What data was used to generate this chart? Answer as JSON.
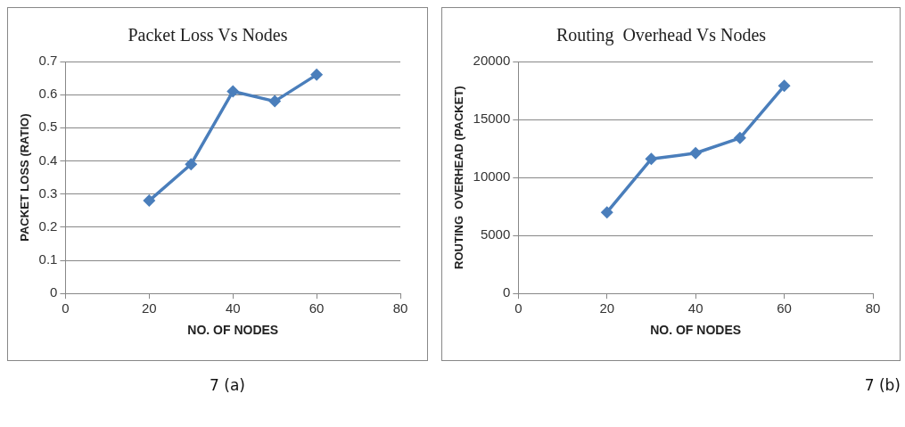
{
  "chart_data": [
    {
      "type": "line",
      "title": "Packet Loss Vs Nodes",
      "xlabel": "NO. OF NODES",
      "ylabel": "PACKET LOSS (RATIO)",
      "x": [
        20,
        30,
        40,
        50,
        60
      ],
      "series": [
        {
          "color": "#4a7ebb",
          "values": [
            0.28,
            0.39,
            0.61,
            0.58,
            0.66
          ]
        }
      ],
      "xlim": [
        0,
        80
      ],
      "xticks": [
        0,
        20,
        40,
        60,
        80
      ],
      "ylim": [
        0,
        0.7
      ],
      "yticks": [
        0,
        0.1,
        0.2,
        0.3,
        0.4,
        0.5,
        0.6,
        0.7
      ],
      "grid": "y",
      "legend": false,
      "marker": "diamond",
      "line_style": "solid",
      "annotations": [
        "7 (a)"
      ]
    },
    {
      "type": "line",
      "title": "Routing  Overhead Vs Nodes",
      "xlabel": "NO. OF NODES",
      "ylabel": "ROUTING  OVERHEAD (PACKET)",
      "x": [
        20,
        30,
        40,
        50,
        60
      ],
      "series": [
        {
          "color": "#4a7ebb",
          "values": [
            7000,
            11600,
            12100,
            13400,
            17900
          ]
        }
      ],
      "xlim": [
        0,
        80
      ],
      "xticks": [
        0,
        20,
        40,
        60,
        80
      ],
      "ylim": [
        0,
        20000
      ],
      "yticks": [
        0,
        5000,
        10000,
        15000,
        20000
      ],
      "grid": "y",
      "legend": false,
      "marker": "diamond",
      "line_style": "solid",
      "annotations": [
        "7 (b)"
      ]
    }
  ]
}
